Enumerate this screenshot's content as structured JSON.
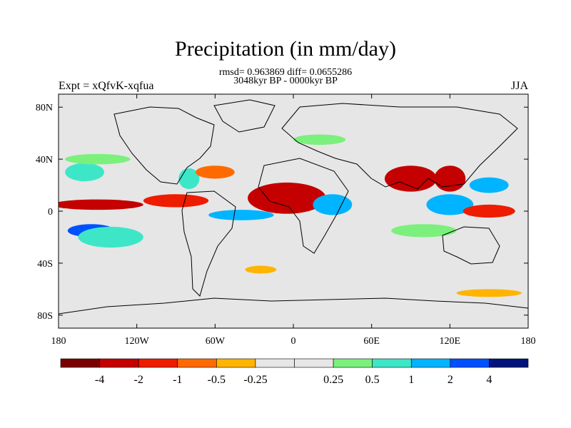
{
  "chart_data": {
    "type": "heatmap",
    "title": "Precipitation (in mm/day)",
    "stats_line": "rmsd= 0.963869 diff= 0.0655286",
    "period_line": "3048kyr BP - 0000kyr BP",
    "left_label": "Expt = xQfvK-xqfua",
    "right_label": "JJA",
    "x_ticks": [
      "180",
      "120W",
      "60W",
      "0",
      "60E",
      "120E",
      "180"
    ],
    "y_ticks": [
      "80N",
      "40N",
      "0",
      "40S",
      "80S"
    ],
    "lon_range": [
      -180,
      180
    ],
    "lat_range": [
      -90,
      90
    ],
    "colorbar": {
      "colors": [
        "#7a0000",
        "#c40000",
        "#ee1c00",
        "#ff6a00",
        "#ffb400",
        "#e6e6e6",
        "#e6e6e6",
        "#7cf07c",
        "#3ee6c8",
        "#00b4ff",
        "#0050ff",
        "#00147a"
      ],
      "boundaries": [
        -4,
        -2,
        -1,
        -0.5,
        -0.25,
        0.25,
        0.5,
        1,
        2,
        4
      ],
      "labels": [
        "-4",
        "-2",
        "-1",
        "-0.5",
        "-0.25",
        "0.25",
        "0.5",
        "1",
        "2",
        "4"
      ]
    },
    "anomaly_regions": [
      {
        "lon": -150,
        "lat": 5,
        "rx": 35,
        "ry": 4,
        "value": -3
      },
      {
        "lon": -155,
        "lat": -15,
        "rx": 18,
        "ry": 5,
        "value": 5
      },
      {
        "lon": -140,
        "lat": -20,
        "rx": 25,
        "ry": 8,
        "value": 1.5
      },
      {
        "lon": -160,
        "lat": 30,
        "rx": 15,
        "ry": 7,
        "value": 1.5
      },
      {
        "lon": -90,
        "lat": 8,
        "rx": 25,
        "ry": 5,
        "value": -2
      },
      {
        "lon": -80,
        "lat": 25,
        "rx": 8,
        "ry": 8,
        "value": 1.5
      },
      {
        "lon": -60,
        "lat": 30,
        "rx": 15,
        "ry": 5,
        "value": -1
      },
      {
        "lon": -40,
        "lat": -3,
        "rx": 25,
        "ry": 4,
        "value": 3
      },
      {
        "lon": -5,
        "lat": 10,
        "rx": 30,
        "ry": 12,
        "value": -3
      },
      {
        "lon": 30,
        "lat": 5,
        "rx": 15,
        "ry": 8,
        "value": 3
      },
      {
        "lon": 90,
        "lat": 25,
        "rx": 20,
        "ry": 10,
        "value": -3
      },
      {
        "lon": 120,
        "lat": 25,
        "rx": 12,
        "ry": 10,
        "value": -3
      },
      {
        "lon": 120,
        "lat": 5,
        "rx": 18,
        "ry": 8,
        "value": 3
      },
      {
        "lon": 150,
        "lat": 20,
        "rx": 15,
        "ry": 6,
        "value": 3
      },
      {
        "lon": 150,
        "lat": 0,
        "rx": 20,
        "ry": 5,
        "value": -1.5
      },
      {
        "lon": 100,
        "lat": -15,
        "rx": 25,
        "ry": 5,
        "value": 0.75
      },
      {
        "lon": -150,
        "lat": 40,
        "rx": 25,
        "ry": 4,
        "value": 0.75
      },
      {
        "lon": 20,
        "lat": 55,
        "rx": 20,
        "ry": 4,
        "value": 0.75
      },
      {
        "lon": 150,
        "lat": -63,
        "rx": 25,
        "ry": 3,
        "value": -0.4
      },
      {
        "lon": -25,
        "lat": -45,
        "rx": 12,
        "ry": 3,
        "value": -0.4
      }
    ]
  }
}
